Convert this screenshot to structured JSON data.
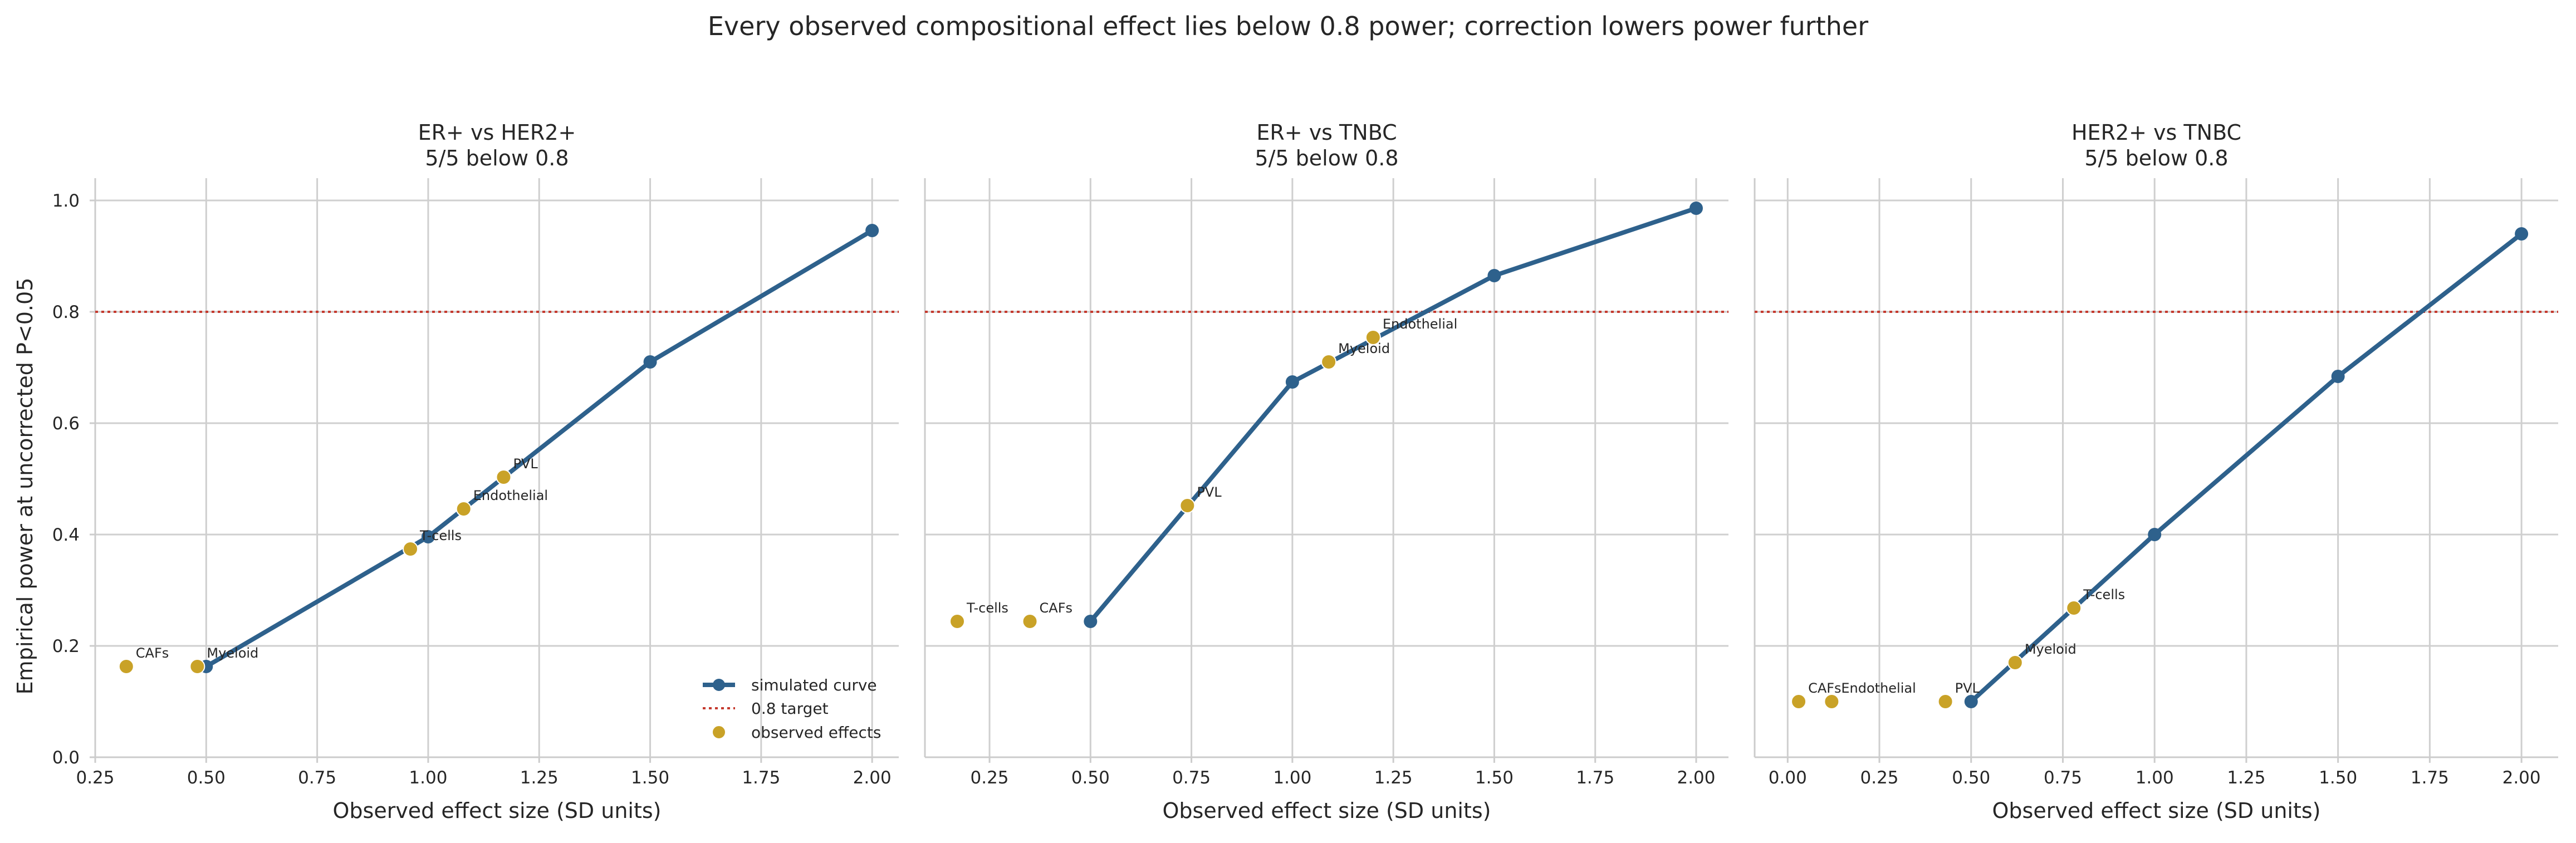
{
  "chart_data": {
    "type": "line",
    "title": "Every observed compositional effect lies below 0.8 power; correction lowers power further",
    "xlabel": "Observed effect size (SD units)",
    "ylabel": "Empirical power at uncorrected P<0.05",
    "ylim": [
      0,
      1.04
    ],
    "yticks": [
      "0.0",
      "0.2",
      "0.4",
      "0.6",
      "0.8",
      "1.0"
    ],
    "target_power": 0.8,
    "grid": true,
    "legend": {
      "placement": "lower-right",
      "entries": [
        "simulated curve",
        "0.8 target",
        "observed effects"
      ]
    },
    "colors": {
      "curve": "#2e618c",
      "observed": "#c9a227",
      "target": "#c53a2e"
    },
    "panels": [
      {
        "title": "ER+ vs HER2+",
        "subtitle": "5/5 below 0.8",
        "xlim": [
          0.25,
          2.06
        ],
        "xticks": [
          "0.25",
          "0.50",
          "0.75",
          "1.00",
          "1.25",
          "1.50",
          "1.75",
          "2.00"
        ],
        "series": [
          {
            "name": "simulated curve",
            "x": [
              0.5,
              1.0,
              1.5,
              2.0
            ],
            "y": [
              0.163,
              0.396,
              0.71,
              0.946
            ]
          }
        ],
        "observed": [
          {
            "label": "CAFs",
            "x": 0.32,
            "y": 0.163
          },
          {
            "label": "Myeloid",
            "x": 0.48,
            "y": 0.163
          },
          {
            "label": "T-cells",
            "x": 0.96,
            "y": 0.374
          },
          {
            "label": "Endothelial",
            "x": 1.08,
            "y": 0.446
          },
          {
            "label": "PVL",
            "x": 1.17,
            "y": 0.503
          }
        ]
      },
      {
        "title": "ER+ vs TNBC",
        "subtitle": "5/5 below 0.8",
        "xlim": [
          0.09,
          2.08
        ],
        "xticks": [
          "0.25",
          "0.50",
          "0.75",
          "1.00",
          "1.25",
          "1.50",
          "1.75",
          "2.00"
        ],
        "series": [
          {
            "name": "simulated curve",
            "x": [
              0.5,
              1.0,
              1.5,
              2.0
            ],
            "y": [
              0.244,
              0.674,
              0.865,
              0.986
            ]
          }
        ],
        "observed": [
          {
            "label": "T-cells",
            "x": 0.17,
            "y": 0.244
          },
          {
            "label": "CAFs",
            "x": 0.35,
            "y": 0.244
          },
          {
            "label": "PVL",
            "x": 0.74,
            "y": 0.452
          },
          {
            "label": "Myeloid",
            "x": 1.09,
            "y": 0.71
          },
          {
            "label": "Endothelial",
            "x": 1.2,
            "y": 0.754
          }
        ]
      },
      {
        "title": "HER2+ vs TNBC",
        "subtitle": "5/5 below 0.8",
        "xlim": [
          -0.09,
          2.1
        ],
        "xticks": [
          "0.00",
          "0.25",
          "0.50",
          "0.75",
          "1.00",
          "1.25",
          "1.50",
          "1.75",
          "2.00"
        ],
        "series": [
          {
            "name": "simulated curve",
            "x": [
              0.5,
              1.0,
              1.5,
              2.0
            ],
            "y": [
              0.1,
              0.4,
              0.684,
              0.94
            ]
          }
        ],
        "observed": [
          {
            "label": "CAFs",
            "x": 0.03,
            "y": 0.1
          },
          {
            "label": "Endothelial",
            "x": 0.12,
            "y": 0.1
          },
          {
            "label": "PVL",
            "x": 0.43,
            "y": 0.1
          },
          {
            "label": "Myeloid",
            "x": 0.62,
            "y": 0.17
          },
          {
            "label": "T-cells",
            "x": 0.78,
            "y": 0.268
          }
        ]
      }
    ]
  }
}
